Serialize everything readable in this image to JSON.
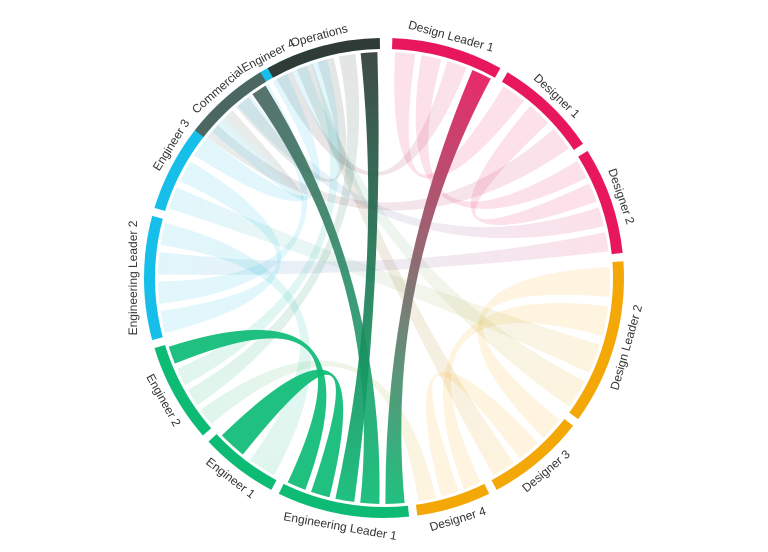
{
  "groups": [
    {
      "name": "Design Leader 1",
      "color": "#e8175d"
    },
    {
      "name": "Designer 1",
      "color": "#e8175d"
    },
    {
      "name": "Designer 2",
      "color": "#e8175d"
    },
    {
      "name": "Design Leader 2",
      "color": "#f4a808"
    },
    {
      "name": "Designer 3",
      "color": "#f4a808"
    },
    {
      "name": "Designer 4",
      "color": "#f4a808"
    },
    {
      "name": "Engineering Leader 1",
      "color": "#0dbb75"
    },
    {
      "name": "Engineer 1",
      "color": "#0dbb75"
    },
    {
      "name": "Engineer 2",
      "color": "#0dbb75"
    },
    {
      "name": "Engineering Leader 2",
      "color": "#16bfe9"
    },
    {
      "name": "Engineer 3",
      "color": "#16bfe9"
    },
    {
      "name": "Engineer 4",
      "color": "#16bfe9"
    },
    {
      "name": "Commercial",
      "color": "#4c6660"
    },
    {
      "name": "Operations",
      "color": "#2f3b37"
    }
  ],
  "ribbons": [
    {
      "from": "Design Leader 1",
      "to": "Designer 1",
      "highlight": false
    },
    {
      "from": "Design Leader 1",
      "to": "Designer 2",
      "highlight": false
    },
    {
      "from": "Designer 1",
      "to": "Designer 2",
      "highlight": false
    },
    {
      "from": "Designer 1",
      "to": "Commercial",
      "highlight": false
    },
    {
      "from": "Designer 2",
      "to": "Engineer 4",
      "highlight": false
    },
    {
      "from": "Design Leader 1",
      "to": "Operations",
      "highlight": false
    },
    {
      "from": "Design Leader 2",
      "to": "Designer 3",
      "highlight": false
    },
    {
      "from": "Design Leader 2",
      "to": "Designer 4",
      "highlight": false
    },
    {
      "from": "Designer 3",
      "to": "Designer 4",
      "highlight": false
    },
    {
      "from": "Design Leader 2",
      "to": "Engineer 3",
      "highlight": false
    },
    {
      "from": "Designer 3",
      "to": "Operations",
      "highlight": false
    },
    {
      "from": "Designer 4",
      "to": "Engineer 2",
      "highlight": false
    },
    {
      "from": "Engineering Leader 2",
      "to": "Engineer 3",
      "highlight": false
    },
    {
      "from": "Engineering Leader 2",
      "to": "Engineer 4",
      "highlight": false
    },
    {
      "from": "Engineer 3",
      "to": "Engineer 4",
      "highlight": false
    },
    {
      "from": "Engineer 4",
      "to": "Design Leader 2",
      "highlight": false
    },
    {
      "from": "Engineering Leader 2",
      "to": "Designer 2",
      "highlight": false
    },
    {
      "from": "Engineer 3",
      "to": "Commercial",
      "highlight": false
    },
    {
      "from": "Operations",
      "to": "Commercial",
      "highlight": false
    },
    {
      "from": "Engineer 2",
      "to": "Operations",
      "highlight": false
    },
    {
      "from": "Engineer 1",
      "to": "Engineering Leader 2",
      "highlight": false
    },
    {
      "from": "Engineer 2",
      "to": "Engineer 4",
      "highlight": false
    },
    {
      "from": "Engineering Leader 1",
      "to": "Design Leader 1",
      "highlight": true
    },
    {
      "from": "Engineering Leader 1",
      "to": "Commercial",
      "highlight": true
    },
    {
      "from": "Engineering Leader 1",
      "to": "Operations",
      "highlight": true
    },
    {
      "from": "Engineering Leader 1",
      "to": "Engineer 1",
      "highlight": true
    },
    {
      "from": "Engineering Leader 1",
      "to": "Engineer 2",
      "highlight": true
    }
  ]
}
